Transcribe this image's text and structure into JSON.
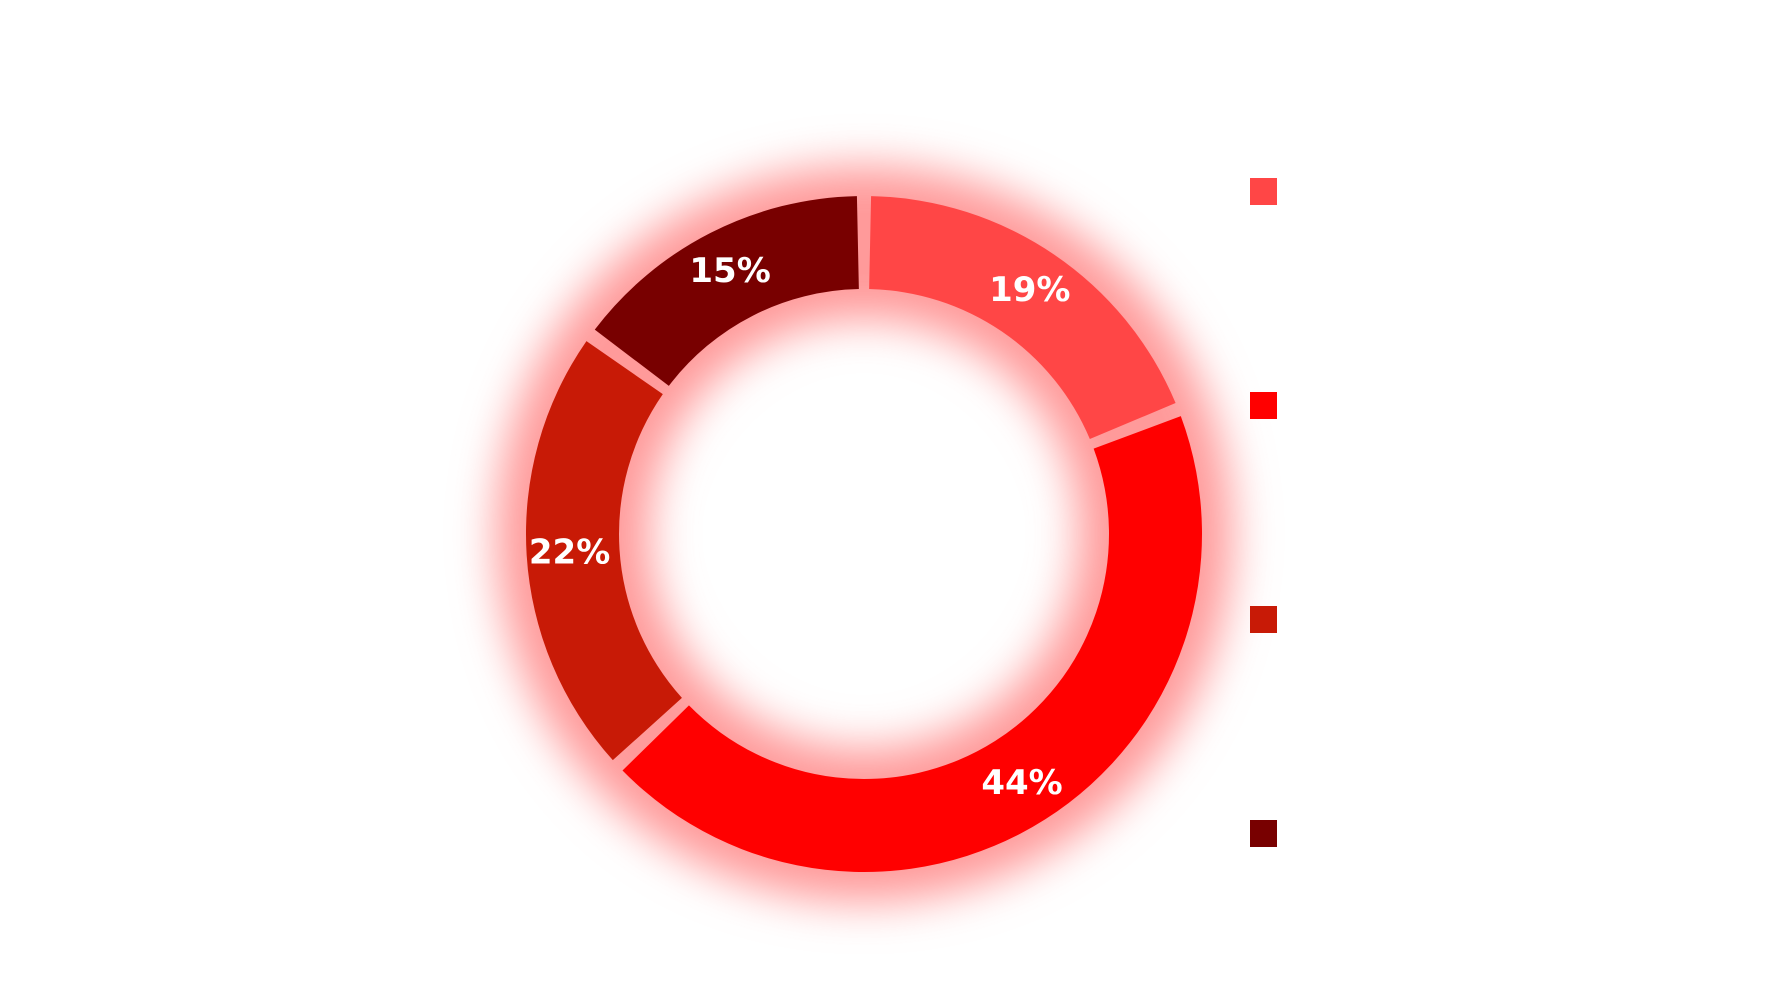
{
  "chart_data": {
    "type": "pie",
    "donut": true,
    "legend_position": "right",
    "data_labels": [
      "19%",
      "44%",
      "22%",
      "15%"
    ],
    "values": [
      19,
      44,
      22,
      15
    ],
    "colors": [
      "#ff4646",
      "#ff0000",
      "#c81a06",
      "#780000"
    ],
    "glow_color": "#ff9a9a"
  }
}
